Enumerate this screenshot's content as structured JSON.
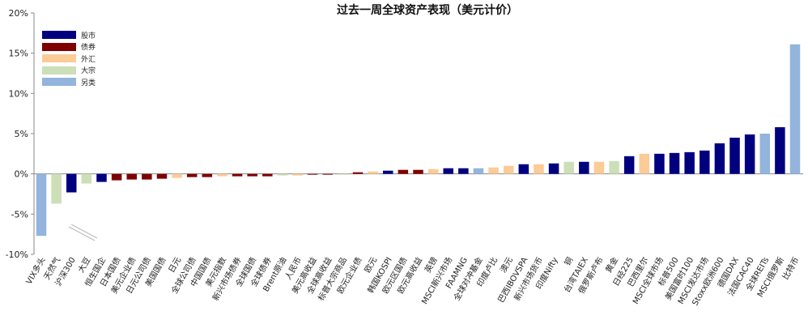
{
  "chart_data": {
    "type": "bar",
    "title": "过去一周全球资产表现（美元计价）",
    "ylim": [
      -10,
      20
    ],
    "yticks": [
      "-10%",
      "-5%",
      "0%",
      "5%",
      "10%",
      "15%",
      "20%"
    ],
    "ytick_values": [
      -10,
      -5,
      0,
      5,
      10,
      15,
      20
    ],
    "legend": [
      {
        "key": "equity",
        "label": "股市",
        "color": "#00007F"
      },
      {
        "key": "bond",
        "label": "债券",
        "color": "#7F0000"
      },
      {
        "key": "fx",
        "label": "外汇",
        "color": "#FBCB98"
      },
      {
        "key": "commodity",
        "label": "大宗",
        "color": "#CCDFB8"
      },
      {
        "key": "alt",
        "label": "另类",
        "color": "#93B4DC"
      }
    ],
    "categories": [
      "VIX多头",
      "天然气",
      "沪深300",
      "大豆",
      "恒生国企",
      "日本国债",
      "美元企业债",
      "日元公司债",
      "美国国债",
      "日元",
      "全球公司债",
      "中国国债",
      "美元指数",
      "新兴市场债券",
      "全球国债",
      "全球债券",
      "Brent原油",
      "人民币",
      "美元高收益",
      "全球高收益",
      "标普大宗商品",
      "欧元企业债",
      "欧元",
      "韩国KOSPI",
      "欧元区国债",
      "欧元高收益",
      "英镑",
      "MSCI新兴市场",
      "FAAMNG",
      "全球对冲基金",
      "印度卢比",
      "澳元",
      "巴西IBOVSPA",
      "新兴市场货币",
      "印度Nifty",
      "铜",
      "台湾TAIEX",
      "俄罗斯卢布",
      "黄金",
      "日经225",
      "巴西里尔",
      "MSCI全球市场",
      "标普500",
      "美国富时100",
      "MSCI发达市场",
      "Stoxx欧洲600",
      "德国DAX",
      "法国CAC40",
      "全球REITs",
      "MSCI俄罗斯",
      "比特币"
    ],
    "classes": [
      "alt",
      "commodity",
      "equity",
      "commodity",
      "equity",
      "bond",
      "bond",
      "bond",
      "bond",
      "fx",
      "bond",
      "bond",
      "fx",
      "bond",
      "bond",
      "bond",
      "commodity",
      "fx",
      "bond",
      "bond",
      "commodity",
      "bond",
      "fx",
      "equity",
      "bond",
      "bond",
      "fx",
      "equity",
      "equity",
      "alt",
      "fx",
      "fx",
      "equity",
      "fx",
      "equity",
      "commodity",
      "equity",
      "fx",
      "commodity",
      "equity",
      "fx",
      "equity",
      "equity",
      "equity",
      "equity",
      "equity",
      "equity",
      "equity",
      "alt",
      "equity",
      "alt"
    ],
    "values": [
      -7.7,
      -3.7,
      -2.3,
      -1.2,
      -1.0,
      -0.8,
      -0.7,
      -0.7,
      -0.6,
      -0.5,
      -0.4,
      -0.4,
      -0.3,
      -0.3,
      -0.3,
      -0.3,
      -0.2,
      -0.2,
      -0.1,
      -0.1,
      -0.1,
      0.2,
      0.3,
      0.4,
      0.5,
      0.5,
      0.6,
      0.7,
      0.7,
      0.7,
      0.8,
      1.0,
      1.2,
      1.2,
      1.3,
      1.5,
      1.5,
      1.5,
      1.6,
      2.2,
      2.5,
      2.5,
      2.6,
      2.7,
      2.9,
      3.8,
      4.5,
      4.9,
      5.0,
      5.8,
      16.1
    ]
  }
}
